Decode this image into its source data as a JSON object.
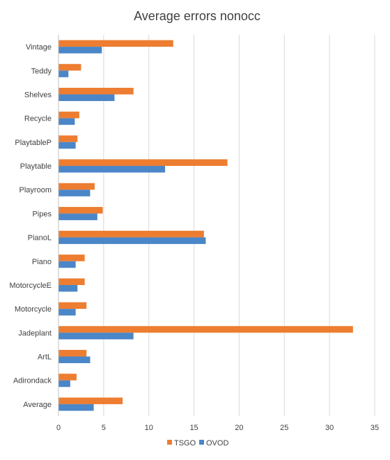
{
  "chart_data": {
    "type": "bar",
    "orientation": "horizontal",
    "title": "Average errors nonocc",
    "xlabel": "",
    "ylabel": "",
    "xlim": [
      0,
      35
    ],
    "xticks": [
      0,
      5,
      10,
      15,
      20,
      25,
      30,
      35
    ],
    "grid": "vertical",
    "legend_position": "bottom",
    "categories": [
      "Vintage",
      "Teddy",
      "Shelves",
      "Recycle",
      "PlaytableP",
      "Playtable",
      "Playroom",
      "Pipes",
      "PianoL",
      "Piano",
      "MotorcycleE",
      "Motorcycle",
      "Jadeplant",
      "ArtL",
      "Adirondack",
      "Average"
    ],
    "series": [
      {
        "name": "TSGO",
        "color": "#ED7D31",
        "values": [
          12.7,
          2.5,
          8.3,
          2.3,
          2.1,
          18.7,
          4.0,
          4.9,
          16.1,
          2.9,
          2.9,
          3.1,
          32.6,
          3.1,
          2.0,
          7.1
        ]
      },
      {
        "name": "OVOD",
        "color": "#4A86C8",
        "values": [
          4.8,
          1.1,
          6.2,
          1.8,
          1.9,
          11.8,
          3.5,
          4.3,
          16.3,
          1.9,
          2.1,
          1.9,
          8.3,
          3.5,
          1.3,
          3.9
        ]
      }
    ]
  }
}
